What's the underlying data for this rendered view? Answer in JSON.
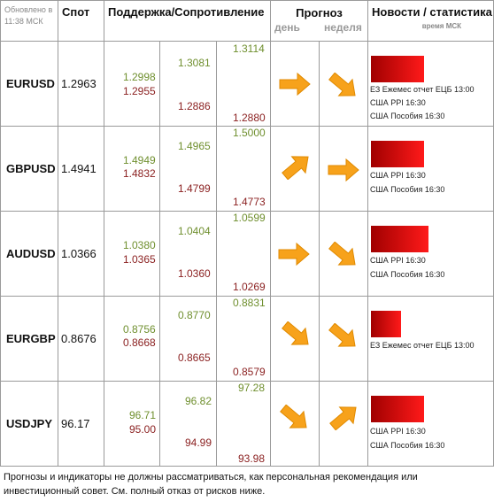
{
  "header": {
    "updated": "Обновлено в 11:38 МСК",
    "spot": "Спот",
    "levels": "Поддержка/Сопротивление",
    "forecast": "Прогноз",
    "day": "день",
    "week": "неделя",
    "news": "Новости / статистика",
    "news_time": "время МСК"
  },
  "rows": [
    {
      "pair": "EURUSD",
      "spot": "1.2963",
      "levels": {
        "s1": "1.2998",
        "r1": "1.2955",
        "s2": "1.3081",
        "r2": "1.2886",
        "s3": "1.3114",
        "r3": "1.2880"
      },
      "day": "right",
      "week": "down-right",
      "bar_strength": 0.78,
      "news": [
        "ЕЗ Ежемес отчет ЕЦБ 13:00",
        "США PPI 16:30",
        "США Пособия 16:30"
      ]
    },
    {
      "pair": "GBPUSD",
      "spot": "1.4941",
      "levels": {
        "s1": "1.4949",
        "r1": "1.4832",
        "s2": "1.4965",
        "r2": "1.4799",
        "s3": "1.5000",
        "r3": "1.4773"
      },
      "day": "up-right",
      "week": "right",
      "bar_strength": 0.78,
      "news": [
        "США PPI 16:30",
        "США Пособия 16:30"
      ]
    },
    {
      "pair": "AUDUSD",
      "spot": "1.0366",
      "levels": {
        "s1": "1.0380",
        "r1": "1.0365",
        "s2": "1.0404",
        "r2": "1.0360",
        "s3": "1.0599",
        "r3": "1.0269"
      },
      "day": "right",
      "week": "down-right",
      "bar_strength": 0.85,
      "news": [
        "США PPI 16:30",
        "США Пособия 16:30"
      ]
    },
    {
      "pair": "EURGBP",
      "spot": "0.8676",
      "levels": {
        "s1": "0.8756",
        "r1": "0.8668",
        "s2": "0.8770",
        "r2": "0.8665",
        "s3": "0.8831",
        "r3": "0.8579"
      },
      "day": "down-right",
      "week": "down-right",
      "bar_strength": 0.45,
      "news": [
        "ЕЗ Ежемес отчет ЕЦБ 13:00"
      ]
    },
    {
      "pair": "USDJPY",
      "spot": "96.17",
      "levels": {
        "s1": "96.71",
        "r1": "95.00",
        "s2": "96.82",
        "r2": "94.99",
        "s3": "97.28",
        "r3": "93.98"
      },
      "day": "down-right",
      "week": "up-right",
      "bar_strength": 0.78,
      "news": [
        "США PPI 16:30",
        "США Пособия 16:30"
      ]
    }
  ],
  "colors": {
    "support": "#6f8f2e",
    "resistance": "#8a1f1f",
    "arrow": "#f7a21b",
    "bar_dark": "#a00000",
    "bar_bright": "#ff1a1a"
  },
  "disclaimer": "Прогнозы и индикаторы не должны рассматриваться, как персональная рекомендация или инвестиционный совет. См. полный отказ от рисков ниже."
}
